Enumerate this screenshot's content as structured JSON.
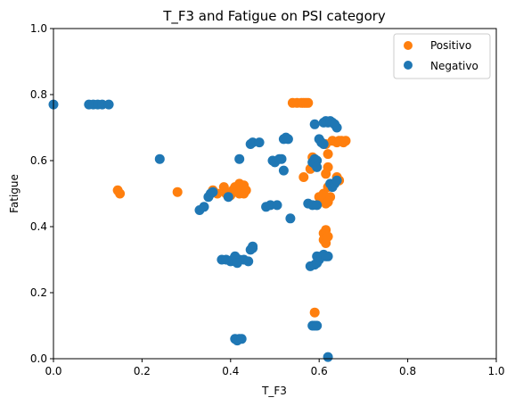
{
  "chart_data": {
    "type": "scatter",
    "title": "T_F3 and Fatigue on PSI category",
    "xlabel": "T_F3",
    "ylabel": "Fatigue",
    "xlim": [
      0,
      1
    ],
    "ylim": [
      0,
      1
    ],
    "xticks": [
      "0.0",
      "0.2",
      "0.4",
      "0.6",
      "0.8",
      "1.0"
    ],
    "yticks": [
      "0.0",
      "0.2",
      "0.4",
      "0.6",
      "0.8",
      "1.0"
    ],
    "legend_position": "top-right",
    "series": [
      {
        "name": "Positivo",
        "color": "#ff7f0e",
        "points": [
          [
            0.145,
            0.51
          ],
          [
            0.15,
            0.5
          ],
          [
            0.28,
            0.505
          ],
          [
            0.36,
            0.51
          ],
          [
            0.37,
            0.5
          ],
          [
            0.385,
            0.52
          ],
          [
            0.39,
            0.5
          ],
          [
            0.4,
            0.495
          ],
          [
            0.405,
            0.51
          ],
          [
            0.41,
            0.52
          ],
          [
            0.415,
            0.505
          ],
          [
            0.42,
            0.5
          ],
          [
            0.42,
            0.53
          ],
          [
            0.425,
            0.515
          ],
          [
            0.43,
            0.5
          ],
          [
            0.43,
            0.525
          ],
          [
            0.435,
            0.51
          ],
          [
            0.54,
            0.775
          ],
          [
            0.55,
            0.775
          ],
          [
            0.56,
            0.775
          ],
          [
            0.565,
            0.775
          ],
          [
            0.57,
            0.775
          ],
          [
            0.575,
            0.775
          ],
          [
            0.565,
            0.55
          ],
          [
            0.58,
            0.575
          ],
          [
            0.585,
            0.61
          ],
          [
            0.59,
            0.14
          ],
          [
            0.6,
            0.49
          ],
          [
            0.605,
            0.48
          ],
          [
            0.61,
            0.5
          ],
          [
            0.615,
            0.47
          ],
          [
            0.61,
            0.38
          ],
          [
            0.615,
            0.39
          ],
          [
            0.61,
            0.36
          ],
          [
            0.615,
            0.35
          ],
          [
            0.62,
            0.37
          ],
          [
            0.615,
            0.56
          ],
          [
            0.62,
            0.58
          ],
          [
            0.62,
            0.62
          ],
          [
            0.615,
            0.65
          ],
          [
            0.62,
            0.52
          ],
          [
            0.625,
            0.49
          ],
          [
            0.62,
            0.475
          ],
          [
            0.63,
            0.66
          ],
          [
            0.64,
            0.655
          ],
          [
            0.645,
            0.66
          ],
          [
            0.65,
            0.66
          ],
          [
            0.655,
            0.655
          ],
          [
            0.66,
            0.66
          ],
          [
            0.64,
            0.55
          ],
          [
            0.645,
            0.54
          ]
        ]
      },
      {
        "name": "Negativo",
        "color": "#1f77b4",
        "points": [
          [
            0.0,
            0.77
          ],
          [
            0.08,
            0.77
          ],
          [
            0.09,
            0.77
          ],
          [
            0.1,
            0.77
          ],
          [
            0.11,
            0.77
          ],
          [
            0.125,
            0.77
          ],
          [
            0.24,
            0.605
          ],
          [
            0.33,
            0.45
          ],
          [
            0.34,
            0.46
          ],
          [
            0.35,
            0.49
          ],
          [
            0.355,
            0.5
          ],
          [
            0.36,
            0.505
          ],
          [
            0.38,
            0.3
          ],
          [
            0.39,
            0.3
          ],
          [
            0.4,
            0.295
          ],
          [
            0.405,
            0.3
          ],
          [
            0.41,
            0.295
          ],
          [
            0.42,
            0.3
          ],
          [
            0.43,
            0.3
          ],
          [
            0.44,
            0.295
          ],
          [
            0.41,
            0.31
          ],
          [
            0.415,
            0.29
          ],
          [
            0.395,
            0.49
          ],
          [
            0.42,
            0.605
          ],
          [
            0.41,
            0.06
          ],
          [
            0.415,
            0.055
          ],
          [
            0.42,
            0.06
          ],
          [
            0.425,
            0.06
          ],
          [
            0.45,
            0.335
          ],
          [
            0.45,
            0.34
          ],
          [
            0.445,
            0.33
          ],
          [
            0.445,
            0.65
          ],
          [
            0.45,
            0.655
          ],
          [
            0.465,
            0.655
          ],
          [
            0.48,
            0.46
          ],
          [
            0.49,
            0.465
          ],
          [
            0.505,
            0.465
          ],
          [
            0.495,
            0.6
          ],
          [
            0.5,
            0.595
          ],
          [
            0.51,
            0.605
          ],
          [
            0.515,
            0.605
          ],
          [
            0.52,
            0.665
          ],
          [
            0.525,
            0.67
          ],
          [
            0.53,
            0.665
          ],
          [
            0.52,
            0.57
          ],
          [
            0.535,
            0.425
          ],
          [
            0.575,
            0.47
          ],
          [
            0.585,
            0.465
          ],
          [
            0.595,
            0.465
          ],
          [
            0.58,
            0.28
          ],
          [
            0.59,
            0.285
          ],
          [
            0.595,
            0.29
          ],
          [
            0.6,
            0.3
          ],
          [
            0.595,
            0.31
          ],
          [
            0.605,
            0.31
          ],
          [
            0.61,
            0.315
          ],
          [
            0.615,
            0.31
          ],
          [
            0.62,
            0.31
          ],
          [
            0.585,
            0.1
          ],
          [
            0.59,
            0.1
          ],
          [
            0.595,
            0.1
          ],
          [
            0.585,
            0.595
          ],
          [
            0.59,
            0.605
          ],
          [
            0.595,
            0.6
          ],
          [
            0.59,
            0.59
          ],
          [
            0.595,
            0.58
          ],
          [
            0.59,
            0.71
          ],
          [
            0.6,
            0.665
          ],
          [
            0.605,
            0.655
          ],
          [
            0.61,
            0.65
          ],
          [
            0.61,
            0.715
          ],
          [
            0.615,
            0.72
          ],
          [
            0.62,
            0.715
          ],
          [
            0.625,
            0.72
          ],
          [
            0.63,
            0.715
          ],
          [
            0.635,
            0.71
          ],
          [
            0.64,
            0.7
          ],
          [
            0.625,
            0.53
          ],
          [
            0.63,
            0.52
          ],
          [
            0.635,
            0.53
          ],
          [
            0.64,
            0.54
          ],
          [
            0.62,
            0.005
          ]
        ]
      }
    ]
  }
}
